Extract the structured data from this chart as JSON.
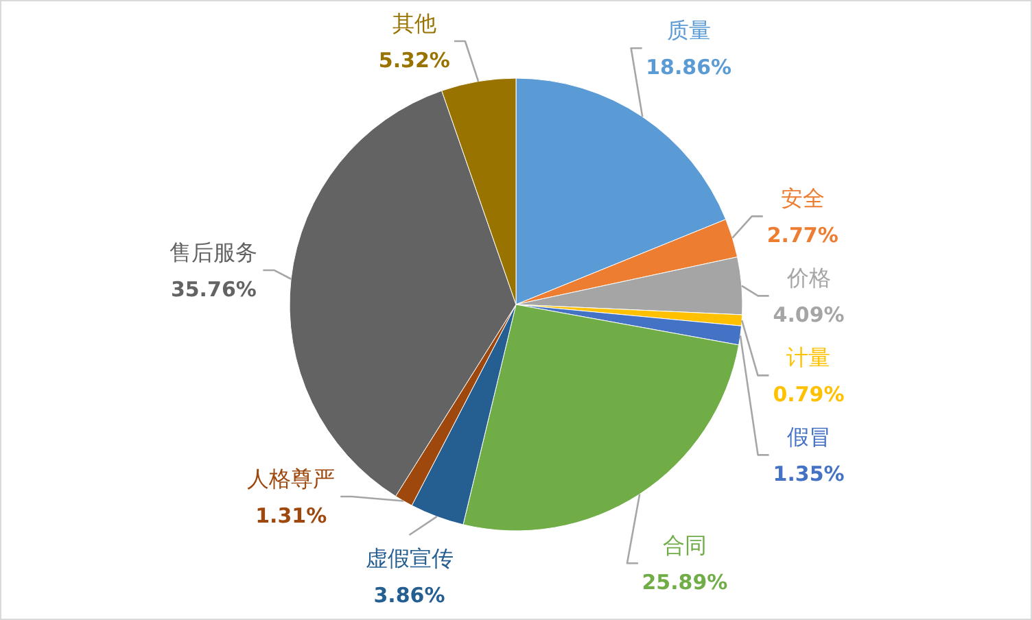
{
  "chart_data": {
    "type": "pie",
    "categories": [
      "质量",
      "安全",
      "价格",
      "计量",
      "假冒",
      "合同",
      "虚假宣传",
      "人格尊严",
      "售后服务",
      "其他"
    ],
    "values": [
      18.86,
      2.77,
      4.09,
      0.79,
      1.35,
      25.89,
      3.86,
      1.31,
      35.76,
      5.32
    ],
    "colors": [
      "#5b9bd5",
      "#ed7d31",
      "#a5a5a5",
      "#ffc000",
      "#4472c4",
      "#70ad47",
      "#255e91",
      "#9e480e",
      "#636363",
      "#997300"
    ],
    "value_labels": [
      "18.86%",
      "2.77%",
      "4.09%",
      "0.79%",
      "1.35%",
      "25.89%",
      "3.86%",
      "1.31%",
      "35.76%",
      "5.32%"
    ]
  }
}
